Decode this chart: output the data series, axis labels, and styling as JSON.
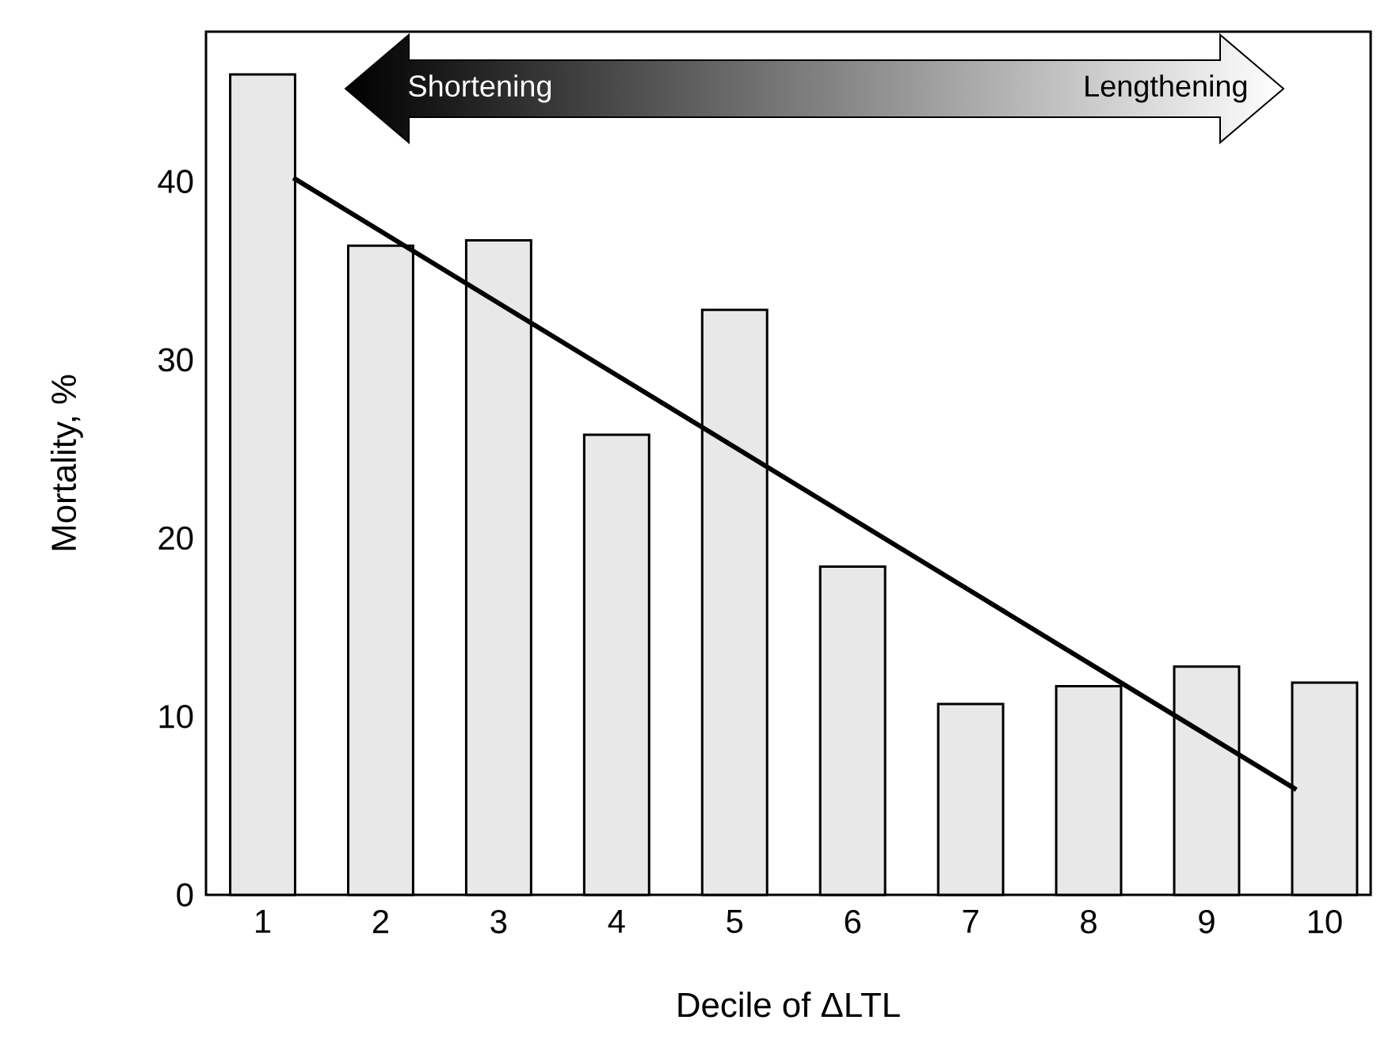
{
  "chart_data": {
    "type": "bar",
    "xlabel": "Decile of ΔLTL",
    "ylabel": "Mortality, %",
    "x": [
      1,
      2,
      3,
      4,
      5,
      6,
      7,
      8,
      9,
      10
    ],
    "xlim": [
      0.52,
      10.39
    ],
    "xticks": [
      1,
      2,
      3,
      4,
      5,
      6,
      7,
      8,
      9,
      10
    ],
    "ylim": [
      0,
      48.4
    ],
    "yticks": [
      0,
      10,
      20,
      30,
      40
    ],
    "series": [
      {
        "color": "#e8e8e8",
        "values": [
          46.0,
          36.4,
          36.7,
          25.8,
          32.8,
          18.4,
          10.7,
          11.7,
          12.8,
          11.9
        ]
      },
      {
        "type": "line",
        "color": "#000000",
        "x": [
          1.26,
          9.76
        ],
        "values": [
          40.2,
          5.9
        ]
      }
    ],
    "annotations": [
      "Shortening",
      "Lengthening"
    ]
  }
}
